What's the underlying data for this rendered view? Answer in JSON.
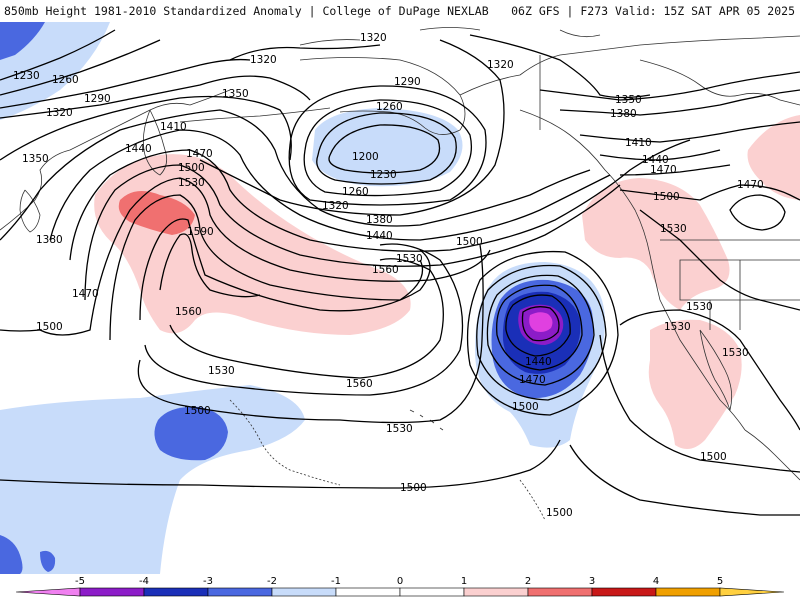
{
  "header": {
    "left_title": "850mb Height 1981-2010 Standardized Anomaly | College of DuPage NEXLAB",
    "right_title": "06Z GFS | F273 Valid: 15Z SAT APR 05 2025"
  },
  "colors": {
    "neg5": "#e040e0",
    "neg4": "#8c1cc8",
    "neg3": "#1a2fb8",
    "neg2": "#4a68e0",
    "neg1": "#c8dcfa",
    "pos1": "#fbd0d0",
    "pos2": "#f07070",
    "pos3": "#c81818",
    "pos4": "#8c0000",
    "pos5": "#f0a000",
    "contour": "#000000",
    "coast": "#333333"
  },
  "contour_labels": [
    {
      "text": "1230"
    },
    {
      "text": "1260"
    },
    {
      "text": "1290"
    },
    {
      "text": "1320"
    },
    {
      "text": "1320"
    },
    {
      "text": "1320"
    },
    {
      "text": "1350"
    },
    {
      "text": "1350"
    },
    {
      "text": "1290"
    },
    {
      "text": "1260"
    },
    {
      "text": "1200"
    },
    {
      "text": "1230"
    },
    {
      "text": "1260"
    },
    {
      "text": "1320"
    },
    {
      "text": "1380"
    },
    {
      "text": "1440"
    },
    {
      "text": "1410"
    },
    {
      "text": "1440"
    },
    {
      "text": "1470"
    },
    {
      "text": "1500"
    },
    {
      "text": "1530"
    },
    {
      "text": "1590"
    },
    {
      "text": "1380"
    },
    {
      "text": "1470"
    },
    {
      "text": "1500"
    },
    {
      "text": "1560"
    },
    {
      "text": "1530"
    },
    {
      "text": "1560"
    },
    {
      "text": "1530"
    },
    {
      "text": "1500"
    },
    {
      "text": "1560"
    },
    {
      "text": "1500"
    },
    {
      "text": "1530"
    },
    {
      "text": "1500"
    },
    {
      "text": "1500"
    },
    {
      "text": "1440"
    },
    {
      "text": "1470"
    },
    {
      "text": "1500"
    },
    {
      "text": "1320"
    },
    {
      "text": "1350"
    },
    {
      "text": "1380"
    },
    {
      "text": "1410"
    },
    {
      "text": "1440"
    },
    {
      "text": "1470"
    },
    {
      "text": "1500"
    },
    {
      "text": "1530"
    },
    {
      "text": "1470"
    },
    {
      "text": "1530"
    },
    {
      "text": "1530"
    },
    {
      "text": "1530"
    },
    {
      "text": "1500"
    }
  ],
  "colorbar": {
    "ticks": [
      "-5",
      "-4",
      "-3",
      "-2",
      "-1",
      "0",
      "1",
      "2",
      "3",
      "4",
      "5"
    ]
  }
}
